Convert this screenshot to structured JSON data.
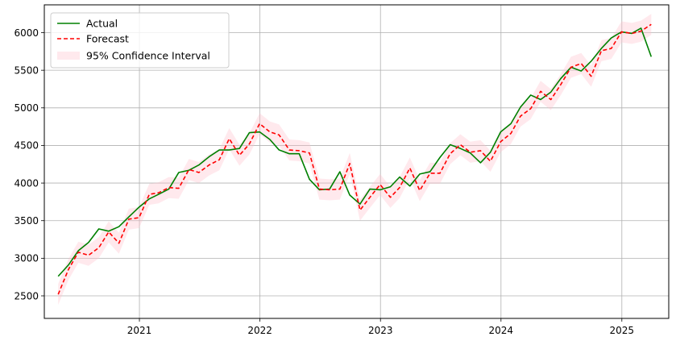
{
  "chart_data": {
    "type": "line",
    "title": "",
    "xlabel": "",
    "ylabel": "",
    "grid": true,
    "legend_position": "top-left",
    "xlim": [
      "2020-03-19",
      "2025-05-23"
    ],
    "ylim": [
      2200,
      6370
    ],
    "x_ticks": [
      "2021-01-01",
      "2022-01-01",
      "2023-01-01",
      "2024-01-01",
      "2025-01-01"
    ],
    "x_tick_labels": [
      "2021",
      "2022",
      "2023",
      "2024",
      "2025"
    ],
    "y_ticks": [
      2500,
      3000,
      3500,
      4000,
      4500,
      5000,
      5500,
      6000
    ],
    "y_tick_labels": [
      "2500",
      "3000",
      "3500",
      "4000",
      "4500",
      "5000",
      "5500",
      "6000"
    ],
    "x": [
      "2020-04-30",
      "2020-05-31",
      "2020-06-30",
      "2020-07-31",
      "2020-08-31",
      "2020-09-30",
      "2020-10-31",
      "2020-11-30",
      "2020-12-31",
      "2021-01-31",
      "2021-02-28",
      "2021-03-31",
      "2021-04-30",
      "2021-05-31",
      "2021-06-30",
      "2021-07-31",
      "2021-08-31",
      "2021-09-30",
      "2021-10-31",
      "2021-11-30",
      "2021-12-31",
      "2022-01-31",
      "2022-02-28",
      "2022-03-31",
      "2022-04-30",
      "2022-05-31",
      "2022-06-30",
      "2022-07-31",
      "2022-08-31",
      "2022-09-30",
      "2022-10-31",
      "2022-11-30",
      "2022-12-31",
      "2023-01-31",
      "2023-02-28",
      "2023-03-31",
      "2023-04-30",
      "2023-05-31",
      "2023-06-30",
      "2023-07-31",
      "2023-08-31",
      "2023-09-30",
      "2023-10-31",
      "2023-11-30",
      "2023-12-31",
      "2024-01-31",
      "2024-02-29",
      "2024-03-31",
      "2024-04-30",
      "2024-05-31",
      "2024-06-30",
      "2024-07-31",
      "2024-08-31",
      "2024-09-30",
      "2024-10-31",
      "2024-11-30",
      "2024-12-31",
      "2025-01-31",
      "2025-02-28",
      "2025-03-31"
    ],
    "series": [
      {
        "name": "Actual",
        "color": "#008000",
        "style": "solid",
        "values": [
          2760,
          2910,
          3100,
          3210,
          3390,
          3360,
          3420,
          3550,
          3680,
          3790,
          3850,
          3920,
          4140,
          4170,
          4240,
          4350,
          4440,
          4440,
          4460,
          4670,
          4680,
          4580,
          4440,
          4390,
          4390,
          4050,
          3910,
          3920,
          4150,
          3840,
          3720,
          3920,
          3910,
          3950,
          4080,
          3960,
          4120,
          4150,
          4340,
          4510,
          4460,
          4400,
          4270,
          4410,
          4680,
          4790,
          5010,
          5170,
          5110,
          5210,
          5390,
          5540,
          5490,
          5620,
          5790,
          5930,
          6010,
          5990,
          6060,
          5680
        ]
      },
      {
        "name": "Forecast",
        "color": "#ff0000",
        "style": "dashed",
        "values": [
          2520,
          2850,
          3080,
          3040,
          3140,
          3350,
          3200,
          3520,
          3540,
          3850,
          3870,
          3940,
          3930,
          4180,
          4140,
          4240,
          4310,
          4590,
          4370,
          4520,
          4790,
          4680,
          4640,
          4440,
          4430,
          4400,
          3920,
          3910,
          3920,
          4260,
          3640,
          3810,
          3980,
          3810,
          3940,
          4200,
          3900,
          4130,
          4130,
          4390,
          4510,
          4410,
          4430,
          4290,
          4550,
          4660,
          4890,
          4990,
          5220,
          5110,
          5310,
          5540,
          5590,
          5420,
          5760,
          5790,
          6010,
          5990,
          6020,
          6110
        ]
      }
    ],
    "confidence_interval": {
      "name": "95% Confidence Interval",
      "color": "#ffc0cb",
      "half_width": 140
    }
  }
}
